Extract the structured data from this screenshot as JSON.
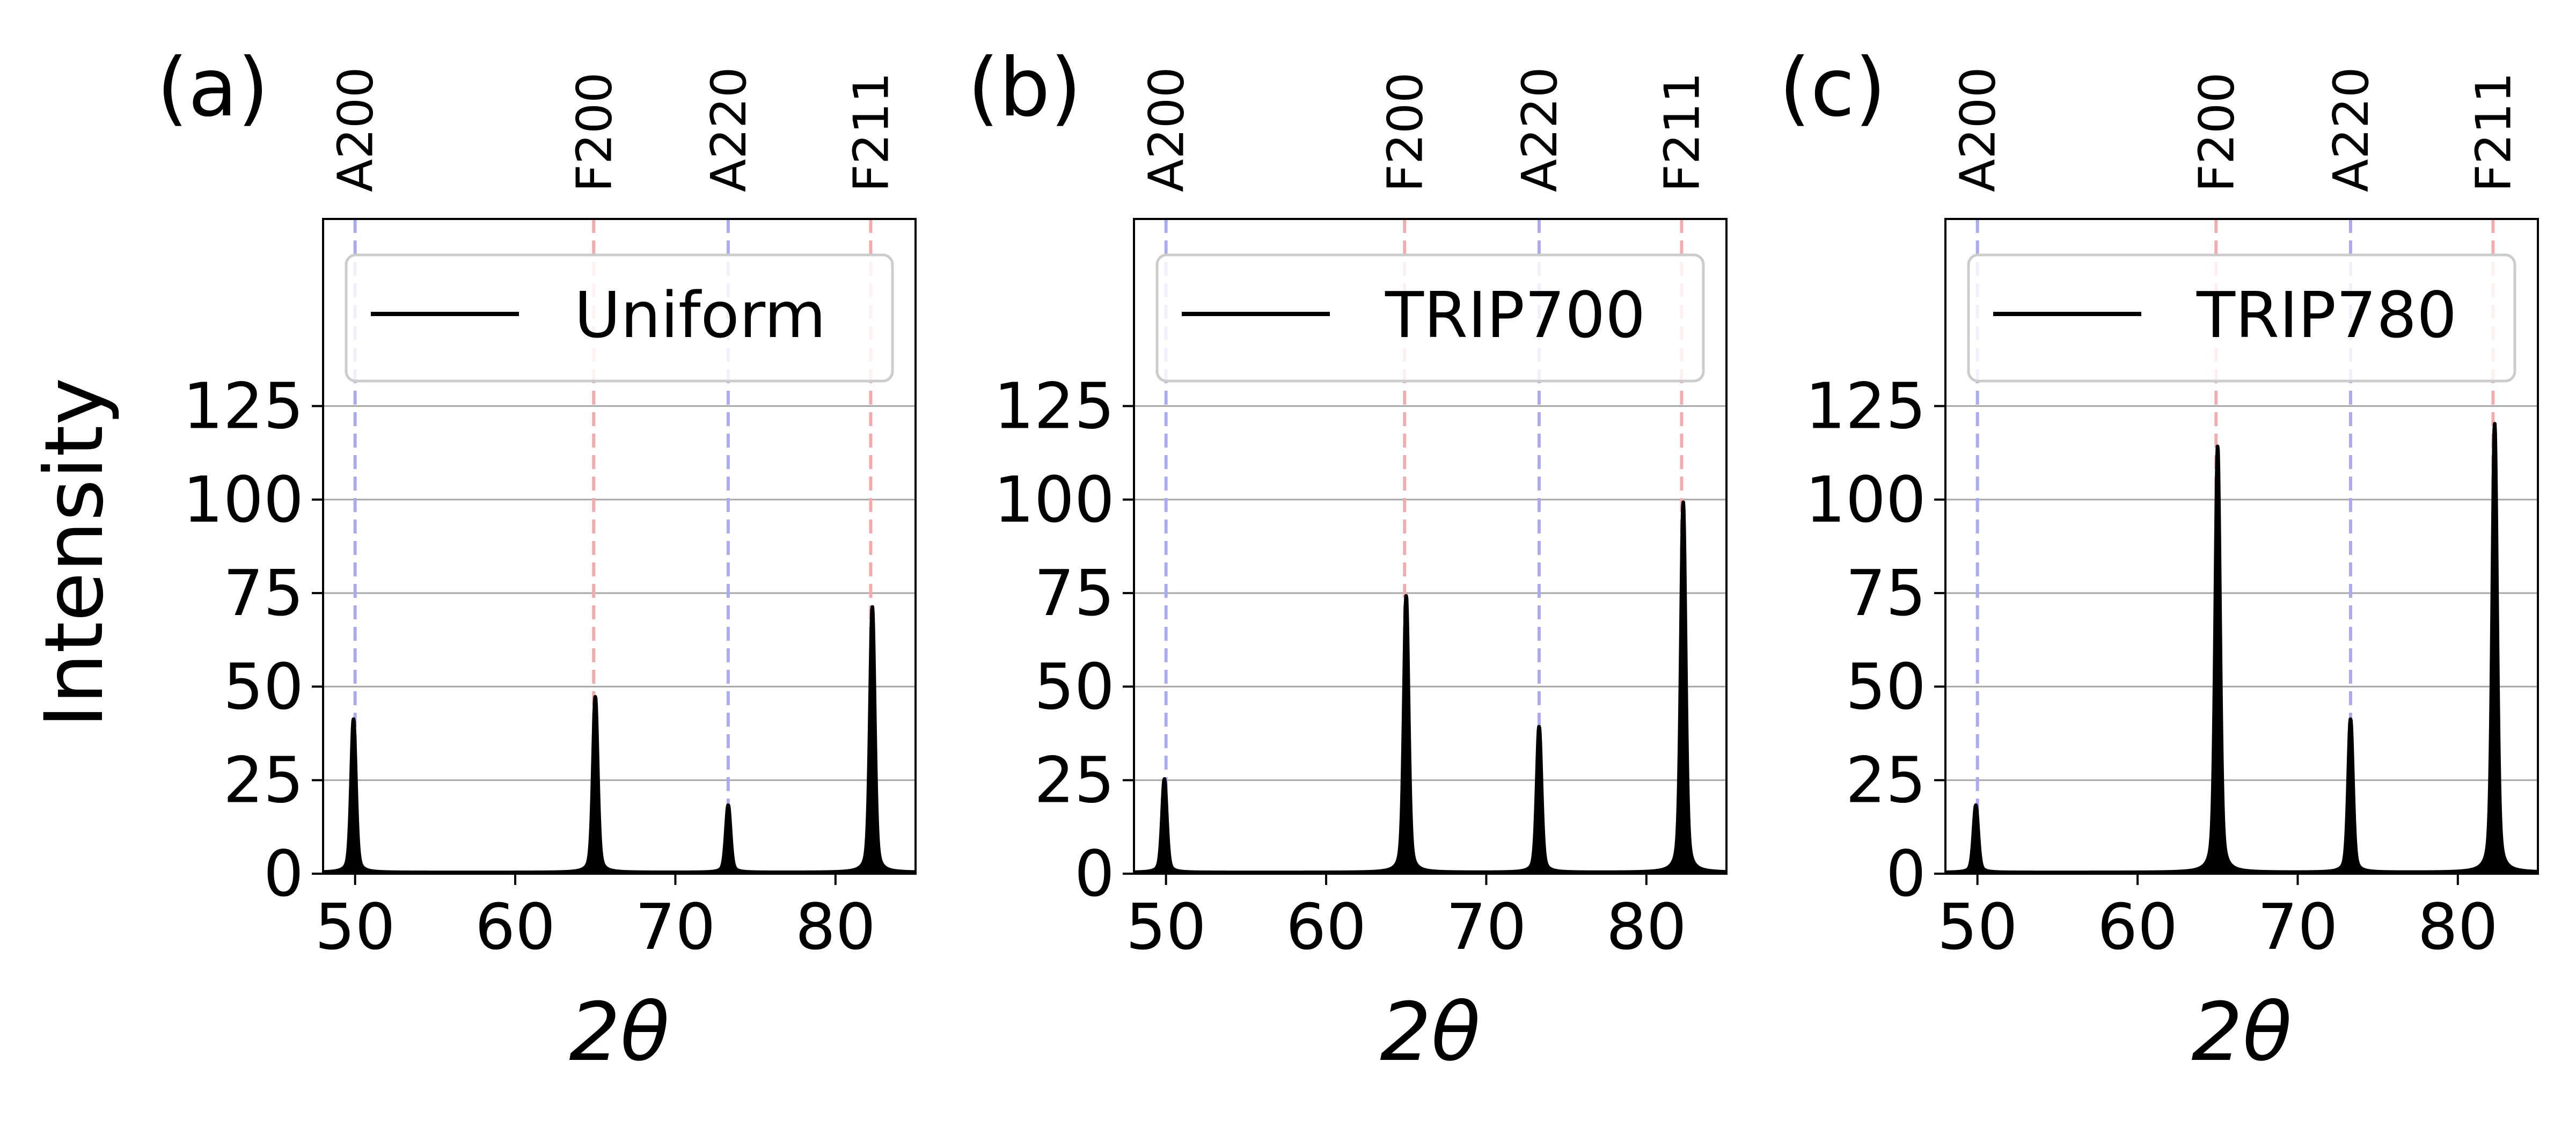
{
  "figure": {
    "ylabel": "Intensity",
    "xlabel": "2θ"
  },
  "chart_data": [
    {
      "type": "line",
      "panel_label": "(a)",
      "legend": {
        "entries": [
          "Uniform"
        ],
        "placement": "upper-right"
      },
      "xlabel": "2θ",
      "ylabel": "Intensity",
      "xlim": [
        48,
        85
      ],
      "ylim": [
        0,
        175
      ],
      "xticks": [
        50,
        60,
        70,
        80
      ],
      "yticks": [
        0,
        25,
        50,
        75,
        100,
        125
      ],
      "grid": "horizontal",
      "series": [
        {
          "name": "Uniform",
          "color": "#000000",
          "peaks": [
            {
              "x": 49.9,
              "y": 41
            },
            {
              "x": 65.0,
              "y": 47
            },
            {
              "x": 73.3,
              "y": 18
            },
            {
              "x": 82.3,
              "y": 71
            }
          ]
        }
      ],
      "reference_lines": [
        {
          "label": "A200",
          "x": 50.0,
          "color": "#aaaaee"
        },
        {
          "label": "F200",
          "x": 64.9,
          "color": "#f2aaaa"
        },
        {
          "label": "A220",
          "x": 73.3,
          "color": "#aaaaee"
        },
        {
          "label": "F211",
          "x": 82.2,
          "color": "#f2aaaa"
        }
      ]
    },
    {
      "type": "line",
      "panel_label": "(b)",
      "legend": {
        "entries": [
          "TRIP700"
        ],
        "placement": "upper-right"
      },
      "xlabel": "2θ",
      "ylabel": "",
      "xlim": [
        48,
        85
      ],
      "ylim": [
        0,
        175
      ],
      "xticks": [
        50,
        60,
        70,
        80
      ],
      "yticks": [
        0,
        25,
        50,
        75,
        100,
        125
      ],
      "grid": "horizontal",
      "series": [
        {
          "name": "TRIP700",
          "color": "#000000",
          "peaks": [
            {
              "x": 49.9,
              "y": 25
            },
            {
              "x": 65.0,
              "y": 74
            },
            {
              "x": 73.3,
              "y": 39
            },
            {
              "x": 82.3,
              "y": 99
            }
          ]
        }
      ],
      "reference_lines": [
        {
          "label": "A200",
          "x": 50.0,
          "color": "#aaaaee"
        },
        {
          "label": "F200",
          "x": 64.9,
          "color": "#f2aaaa"
        },
        {
          "label": "A220",
          "x": 73.3,
          "color": "#aaaaee"
        },
        {
          "label": "F211",
          "x": 82.2,
          "color": "#f2aaaa"
        }
      ]
    },
    {
      "type": "line",
      "panel_label": "(c)",
      "legend": {
        "entries": [
          "TRIP780"
        ],
        "placement": "upper-right"
      },
      "xlabel": "2θ",
      "ylabel": "",
      "xlim": [
        48,
        85
      ],
      "ylim": [
        0,
        175
      ],
      "xticks": [
        50,
        60,
        70,
        80
      ],
      "yticks": [
        0,
        25,
        50,
        75,
        100,
        125
      ],
      "grid": "horizontal",
      "series": [
        {
          "name": "TRIP780",
          "color": "#000000",
          "peaks": [
            {
              "x": 49.9,
              "y": 18
            },
            {
              "x": 65.0,
              "y": 114
            },
            {
              "x": 73.3,
              "y": 41
            },
            {
              "x": 82.3,
              "y": 120
            }
          ]
        }
      ],
      "reference_lines": [
        {
          "label": "A200",
          "x": 50.0,
          "color": "#aaaaee"
        },
        {
          "label": "F200",
          "x": 64.9,
          "color": "#f2aaaa"
        },
        {
          "label": "A220",
          "x": 73.3,
          "color": "#aaaaee"
        },
        {
          "label": "F211",
          "x": 82.2,
          "color": "#f2aaaa"
        }
      ]
    }
  ]
}
